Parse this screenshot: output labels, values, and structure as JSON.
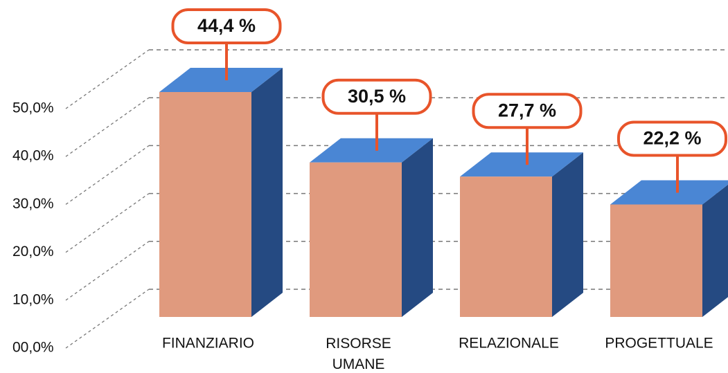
{
  "chart_data": {
    "type": "bar3d",
    "categories": [
      "FINANZIARIO",
      "RISORSE\nUMANE",
      "RELAZIONALE",
      "PROGETTUALE"
    ],
    "values": [
      44.4,
      30.5,
      27.7,
      22.2
    ],
    "value_labels": [
      "44,4 %",
      "30,5 %",
      "27,7 %",
      "22,2 %"
    ],
    "colors": {
      "front": "#e09a7e",
      "top": "#4a86d4",
      "side": "#254a82",
      "callout": "#e8542a"
    },
    "ylim": [
      0,
      50
    ],
    "yticks": [
      {
        "value": 0,
        "label": "00,0%"
      },
      {
        "value": 10,
        "label": "10,0%"
      },
      {
        "value": 20,
        "label": "20,0%"
      },
      {
        "value": 30,
        "label": "30,0%"
      },
      {
        "value": 40,
        "label": "40,0%"
      },
      {
        "value": 50,
        "label": "50,0%"
      }
    ],
    "grid": true
  }
}
